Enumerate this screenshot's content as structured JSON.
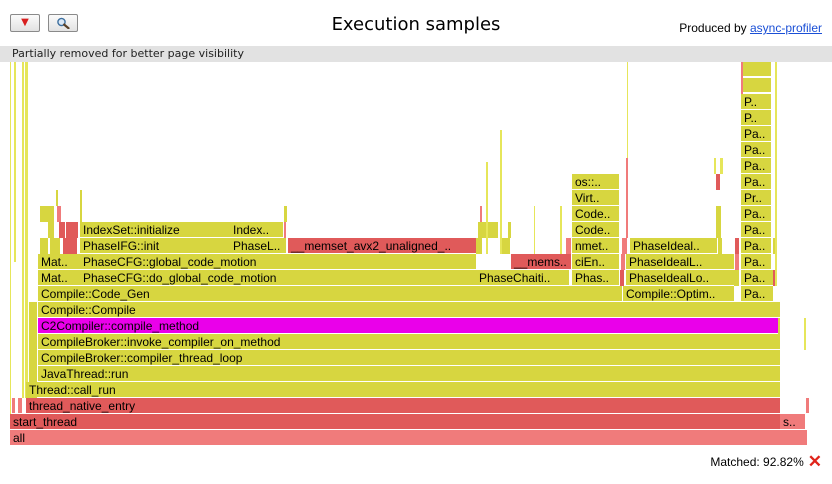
{
  "toolbar": {
    "reverse_label": "▼",
    "search_icon": "search-icon"
  },
  "header": {
    "title": "Execution samples",
    "produced_prefix": "Produced by ",
    "produced_link": "async-profiler"
  },
  "notice": "Partially removed for better page visibility",
  "status": {
    "matched_label": "Matched: 92.82%",
    "clear_icon": "close-icon"
  },
  "colors": {
    "red": "#e05a5a",
    "pink": "#f07b7b",
    "olive": "#d7d640",
    "olive_light": "#e6e65a",
    "magenta": "#ea00ea"
  },
  "frames": [
    {
      "label": "all",
      "color": "pink"
    },
    {
      "label": "start_thread",
      "color": "red"
    },
    {
      "label": "s..",
      "color": "pink"
    },
    {
      "label": "thread_native_entry",
      "color": "red"
    },
    {
      "label": "Thread::call_run",
      "color": "olive"
    },
    {
      "label": "JavaThread::run",
      "color": "olive"
    },
    {
      "label": "CompileBroker::compiler_thread_loop",
      "color": "olive"
    },
    {
      "label": "CompileBroker::invoke_compiler_on_method",
      "color": "olive"
    },
    {
      "label": "C2Compiler::compile_method",
      "color": "magenta"
    },
    {
      "label": "Compile::Compile",
      "color": "olive"
    },
    {
      "label": "Compile::Code_Gen",
      "color": "olive"
    },
    {
      "label": "Compile::Optim..",
      "color": "olive"
    },
    {
      "label": "Pa..",
      "color": "olive"
    },
    {
      "label": "Mat..",
      "color": "olive"
    },
    {
      "label": "PhaseCFG::do_global_code_motion",
      "color": "olive"
    },
    {
      "label": "PhaseChaiti..",
      "color": "olive"
    },
    {
      "label": "Phas..",
      "color": "olive"
    },
    {
      "label": "PhaseIdealLo..",
      "color": "olive"
    },
    {
      "label": "Pa..",
      "color": "olive"
    },
    {
      "label": "Mat..",
      "color": "olive"
    },
    {
      "label": "PhaseCFG::global_code_motion",
      "color": "olive"
    },
    {
      "label": "__mems..",
      "color": "red"
    },
    {
      "label": "ciEn..",
      "color": "olive"
    },
    {
      "label": "PhaseIdealL..",
      "color": "olive"
    },
    {
      "label": "Pa..",
      "color": "olive"
    },
    {
      "label": "PhaseIFG::init",
      "color": "olive"
    },
    {
      "label": "PhaseL..",
      "color": "olive"
    },
    {
      "label": "__memset_avx2_unaligned_..",
      "color": "red"
    },
    {
      "label": "nmet..",
      "color": "olive"
    },
    {
      "label": "PhaseIdeal..",
      "color": "olive"
    },
    {
      "label": "Pa..",
      "color": "olive"
    },
    {
      "label": "IndexSet::initialize",
      "color": "olive"
    },
    {
      "label": "Index..",
      "color": "olive"
    },
    {
      "label": "Code..",
      "color": "olive"
    },
    {
      "label": "Pa..",
      "color": "olive"
    },
    {
      "label": "Code..",
      "color": "olive"
    },
    {
      "label": "Pa..",
      "color": "olive"
    },
    {
      "label": "Virt..",
      "color": "olive"
    },
    {
      "label": "Pr..",
      "color": "olive"
    },
    {
      "label": "os::..",
      "color": "olive"
    },
    {
      "label": "Pa..",
      "color": "olive"
    },
    {
      "label": "Pa..",
      "color": "olive"
    },
    {
      "label": "Pa..",
      "color": "olive"
    },
    {
      "label": "Pa..",
      "color": "olive"
    },
    {
      "label": "P..",
      "color": "olive"
    },
    {
      "label": "P..",
      "color": "olive"
    }
  ]
}
